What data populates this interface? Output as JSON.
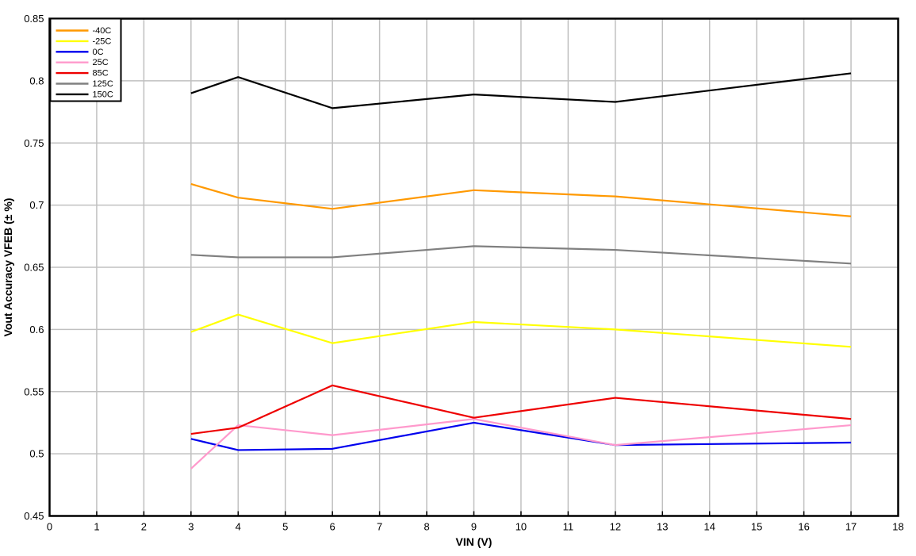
{
  "chart_data": {
    "type": "line",
    "title": "",
    "xlabel": "VIN (V)",
    "ylabel": "Vout Accuracy VFEB (± %)",
    "xlim": [
      0,
      18
    ],
    "ylim": [
      0.45,
      0.85
    ],
    "grid": true,
    "legend_position": "top-left",
    "x_ticks": [
      {
        "v": 0,
        "label": "0"
      },
      {
        "v": 1,
        "label": "1"
      },
      {
        "v": 2,
        "label": "2"
      },
      {
        "v": 3,
        "label": "3"
      },
      {
        "v": 4,
        "label": "4"
      },
      {
        "v": 5,
        "label": "5"
      },
      {
        "v": 6,
        "label": "6"
      },
      {
        "v": 7,
        "label": "7"
      },
      {
        "v": 8,
        "label": "8"
      },
      {
        "v": 9,
        "label": "9"
      },
      {
        "v": 10,
        "label": "10"
      },
      {
        "v": 11,
        "label": "11"
      },
      {
        "v": 12,
        "label": "12"
      },
      {
        "v": 13,
        "label": "13"
      },
      {
        "v": 14,
        "label": "14"
      },
      {
        "v": 15,
        "label": "15"
      },
      {
        "v": 16,
        "label": "16"
      },
      {
        "v": 17,
        "label": "17"
      },
      {
        "v": 18,
        "label": "18"
      }
    ],
    "y_ticks": [
      {
        "v": 0.45,
        "label": "0.45"
      },
      {
        "v": 0.5,
        "label": "0.5"
      },
      {
        "v": 0.55,
        "label": "0.55"
      },
      {
        "v": 0.6,
        "label": "0.6"
      },
      {
        "v": 0.65,
        "label": "0.65"
      },
      {
        "v": 0.7,
        "label": "0.7"
      },
      {
        "v": 0.75,
        "label": "0.75"
      },
      {
        "v": 0.8,
        "label": "0.8"
      },
      {
        "v": 0.85,
        "label": "0.85"
      }
    ],
    "x": [
      3,
      4,
      6,
      9,
      12,
      17
    ],
    "series": [
      {
        "name": "-40C",
        "color": "#FF9900",
        "values": [
          0.717,
          0.706,
          0.697,
          0.712,
          0.707,
          0.691
        ]
      },
      {
        "name": "-25C",
        "color": "#FFFF00",
        "values": [
          0.598,
          0.612,
          0.589,
          0.606,
          0.6,
          0.586
        ]
      },
      {
        "name": "0C",
        "color": "#0000EE",
        "values": [
          0.512,
          0.503,
          0.504,
          0.525,
          0.507,
          0.509
        ]
      },
      {
        "name": "25C",
        "color": "#FF99CC",
        "values": [
          0.488,
          0.523,
          0.515,
          0.528,
          0.507,
          0.523
        ]
      },
      {
        "name": "85C",
        "color": "#EE0000",
        "values": [
          0.516,
          0.521,
          0.555,
          0.529,
          0.545,
          0.528
        ]
      },
      {
        "name": "125C",
        "color": "#808080",
        "values": [
          0.66,
          0.658,
          0.658,
          0.667,
          0.664,
          0.653
        ]
      },
      {
        "name": "150C",
        "color": "#000000",
        "values": [
          0.79,
          0.803,
          0.778,
          0.789,
          0.783,
          0.806
        ]
      }
    ],
    "colors": {
      "grid": "#C0C0C0",
      "axis": "#000000",
      "background": "#FFFFFF"
    }
  }
}
